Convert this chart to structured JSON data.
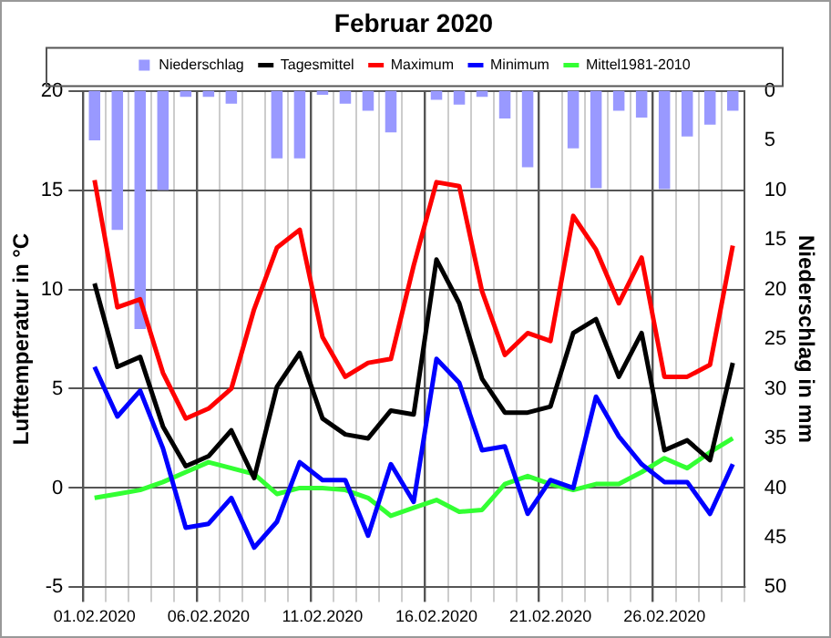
{
  "chart_data": {
    "type": "bar",
    "title": "Februar 2020",
    "ylabel": "Lufttemperatur in °C",
    "y2label": "Niederschlag in mm",
    "categories": [
      "01.02.2020",
      null,
      null,
      null,
      null,
      "06.02.2020",
      null,
      null,
      null,
      null,
      "11.02.2020",
      null,
      null,
      null,
      null,
      "16.02.2020",
      null,
      null,
      null,
      null,
      "21.02.2020",
      null,
      null,
      null,
      null,
      "26.02.2020",
      null,
      null,
      null
    ],
    "series": [
      {
        "name": "Niederschlag",
        "axis": "y2",
        "color": "#9999ff",
        "values": [
          5.0,
          14.0,
          24.0,
          10.0,
          0.6,
          0.6,
          1.3,
          0,
          6.8,
          6.8,
          0.4,
          1.3,
          2.0,
          4.2,
          0,
          0.9,
          1.4,
          0.6,
          2.8,
          7.7,
          0,
          5.8,
          9.8,
          2.0,
          2.7,
          9.9,
          4.6,
          3.4,
          2.0
        ]
      },
      {
        "name": "Tagesmittel",
        "type": "line",
        "color": "#000000",
        "values": [
          10.3,
          6.1,
          6.6,
          3.1,
          1.1,
          1.6,
          2.9,
          0.5,
          5.1,
          6.8,
          3.5,
          2.7,
          2.5,
          3.9,
          3.7,
          11.5,
          9.3,
          5.5,
          3.8,
          3.8,
          4.1,
          7.8,
          8.5,
          5.6,
          7.8,
          1.9,
          2.4,
          1.4,
          6.3
        ]
      },
      {
        "name": "Maximum",
        "type": "line",
        "color": "#ff0000",
        "values": [
          15.5,
          9.1,
          9.5,
          5.8,
          3.5,
          4.0,
          5.0,
          9.0,
          12.1,
          13.0,
          7.6,
          5.6,
          6.3,
          6.5,
          11.2,
          15.4,
          15.2,
          9.9,
          6.7,
          7.8,
          7.4,
          13.7,
          12.0,
          9.3,
          11.6,
          5.6,
          5.6,
          6.2,
          12.2
        ]
      },
      {
        "name": "Minimum",
        "type": "line",
        "color": "#0000ff",
        "values": [
          6.1,
          3.6,
          4.9,
          2.0,
          -2.0,
          -1.8,
          -0.5,
          -3.0,
          -1.7,
          1.3,
          0.4,
          0.4,
          -2.4,
          1.2,
          -0.7,
          6.5,
          5.3,
          1.9,
          2.1,
          -1.3,
          0.4,
          0.0,
          4.6,
          2.6,
          1.2,
          0.3,
          0.3,
          -1.3,
          1.2
        ]
      },
      {
        "name": "Mittel1981-2010",
        "type": "line",
        "color": "#33ff33",
        "values": [
          -0.5,
          -0.3,
          -0.1,
          0.3,
          0.8,
          1.3,
          1.0,
          0.7,
          -0.3,
          0.0,
          0.0,
          -0.1,
          -0.5,
          -1.4,
          -1.0,
          -0.6,
          -1.2,
          -1.1,
          0.2,
          0.6,
          0.2,
          -0.1,
          0.2,
          0.2,
          0.8,
          1.5,
          1.0,
          1.8,
          2.5
        ]
      }
    ],
    "ylim": [
      -5,
      20
    ],
    "yticks": [
      -5,
      0,
      5,
      10,
      15,
      20
    ],
    "y2lim": [
      50,
      0
    ],
    "y2ticks": [
      0,
      5,
      10,
      15,
      20,
      25,
      30,
      35,
      40,
      45,
      50
    ],
    "grid": true,
    "legend": "top",
    "marker": "none",
    "line_style": "solid"
  }
}
